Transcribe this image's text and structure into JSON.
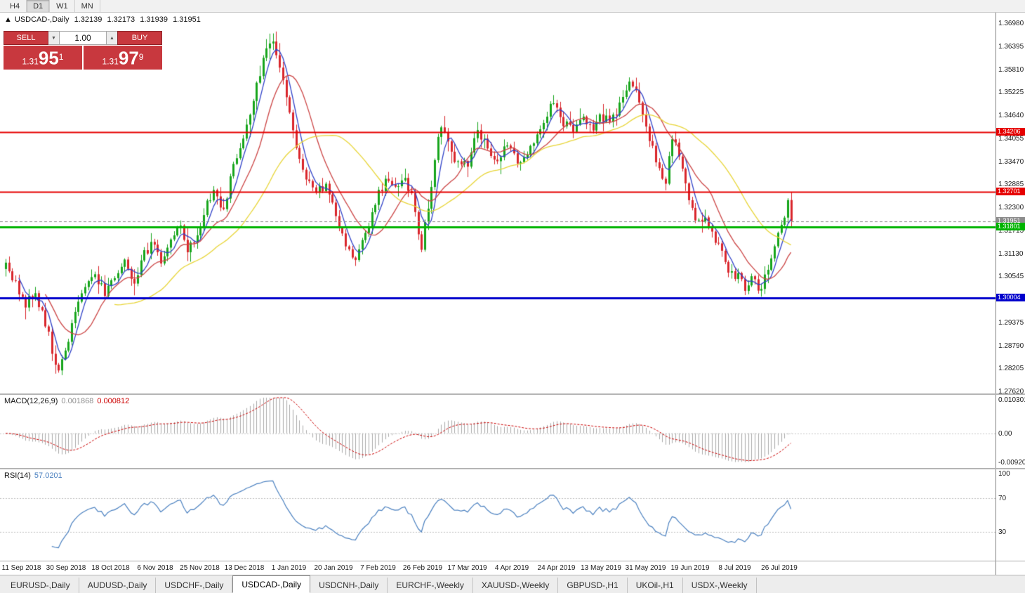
{
  "toolbar": {
    "periods": [
      {
        "label": "H4",
        "active": false
      },
      {
        "label": "D1",
        "active": true
      },
      {
        "label": "W1",
        "active": false
      },
      {
        "label": "MN",
        "active": false
      }
    ]
  },
  "chart": {
    "header": {
      "icon": "▲",
      "symbol": "USDCAD-,Daily",
      "open": "1.32139",
      "high": "1.32173",
      "low": "1.31939",
      "close": "1.31951"
    },
    "trade_panel": {
      "sell_label": "SELL",
      "buy_label": "BUY",
      "volume": "1.00",
      "vol_down_glyph": "▼",
      "vol_up_glyph": "▲",
      "panel_color": "#c8383e",
      "bid": {
        "prefix": "1.31",
        "big": "95",
        "sup": "1"
      },
      "ask": {
        "prefix": "1.31",
        "big": "97",
        "sup": "9"
      }
    },
    "bid_line": {
      "price": 1.31951,
      "label": "1.31951",
      "color": "#8c8c8c"
    },
    "levels": [
      {
        "price": 1.34206,
        "label": "1.34206",
        "color": "#e60000",
        "width": 2
      },
      {
        "price": 1.32701,
        "label": "1.32701",
        "color": "#e60000",
        "width": 2
      },
      {
        "price": 1.31801,
        "label": "1.31801",
        "color": "#00b400",
        "width": 3
      },
      {
        "price": 1.30004,
        "label": "1.30004",
        "color": "#0000cc",
        "width": 3
      }
    ]
  },
  "macd": {
    "name": "MACD(12,26,9)",
    "main_value": "0.001868",
    "signal_value": "0.000812",
    "axis": [
      "0.0103011",
      "0.00",
      "-0.0092011"
    ],
    "range": [
      0.0103011,
      -0.0092011
    ]
  },
  "rsi": {
    "name": "RSI(14)",
    "value": "57.0201",
    "axis": [
      {
        "label": "100",
        "value": 100
      },
      {
        "label": "70",
        "value": 70
      },
      {
        "label": "30",
        "value": 30
      }
    ]
  },
  "tabs": [
    {
      "label": "EURUSD-,Daily",
      "active": false
    },
    {
      "label": "AUDUSD-,Daily",
      "active": false
    },
    {
      "label": "USDCHF-,Daily",
      "active": false
    },
    {
      "label": "USDCAD-,Daily",
      "active": true
    },
    {
      "label": "USDCNH-,Daily",
      "active": false
    },
    {
      "label": "EURCHF-,Weekly",
      "active": false
    },
    {
      "label": "XAUUSD-,Weekly",
      "active": false
    },
    {
      "label": "GBPUSD-,H1",
      "active": false
    },
    {
      "label": "UKOil-,H1",
      "active": false
    },
    {
      "label": "USDX-,Weekly",
      "active": false
    }
  ],
  "chart_data": {
    "type": "candlestick",
    "symbol": "USDCAD",
    "timeframe": "Daily",
    "ohlc_display": {
      "open": 1.32139,
      "high": 1.32173,
      "low": 1.31939,
      "close": 1.31951
    },
    "candle_count": 239,
    "last_close": 1.31951,
    "price_axis": {
      "top": 1.3698,
      "step": 0.00585,
      "labels": [
        "1.36980",
        "1.36395",
        "1.35810",
        "1.35225",
        "1.34640",
        "1.34055",
        "1.33470",
        "1.32885",
        "1.32300",
        "1.31715",
        "1.31130",
        "1.30545",
        "1.29960",
        "1.29375",
        "1.28790",
        "1.28205",
        "1.27620"
      ]
    },
    "date_labels": [
      "11 Sep 2018",
      "30 Sep 2018",
      "18 Oct 2018",
      "6 Nov 2018",
      "25 Nov 2018",
      "13 Dec 2018",
      "1 Jan 2019",
      "20 Jan 2019",
      "7 Feb 2019",
      "26 Feb 2019",
      "17 Mar 2019",
      "4 Apr 2019",
      "24 Apr 2019",
      "13 May 2019",
      "31 May 2019",
      "19 Jun 2019",
      "8 Jul 2019",
      "26 Jul 2019"
    ],
    "price_anchors": [
      [
        0,
        1.3085
      ],
      [
        3,
        1.3035
      ],
      [
        6,
        1.2985
      ],
      [
        9,
        1.3005
      ],
      [
        12,
        1.294
      ],
      [
        14,
        1.2865
      ],
      [
        16,
        1.282
      ],
      [
        18,
        1.287
      ],
      [
        21,
        1.296
      ],
      [
        24,
        1.302
      ],
      [
        27,
        1.306
      ],
      [
        30,
        1.301
      ],
      [
        33,
        1.306
      ],
      [
        36,
        1.309
      ],
      [
        39,
        1.3045
      ],
      [
        42,
        1.311
      ],
      [
        45,
        1.314
      ],
      [
        47,
        1.3075
      ],
      [
        50,
        1.315
      ],
      [
        53,
        1.3175
      ],
      [
        55,
        1.3115
      ],
      [
        58,
        1.317
      ],
      [
        61,
        1.324
      ],
      [
        63,
        1.3265
      ],
      [
        66,
        1.323
      ],
      [
        69,
        1.333
      ],
      [
        72,
        1.3405
      ],
      [
        75,
        1.35
      ],
      [
        78,
        1.361
      ],
      [
        80,
        1.365
      ],
      [
        82,
        1.3628
      ],
      [
        85,
        1.3505
      ],
      [
        88,
        1.3385
      ],
      [
        91,
        1.33
      ],
      [
        94,
        1.327
      ],
      [
        97,
        1.329
      ],
      [
        100,
        1.3205
      ],
      [
        103,
        1.313
      ],
      [
        106,
        1.309
      ],
      [
        109,
        1.316
      ],
      [
        112,
        1.3245
      ],
      [
        115,
        1.33
      ],
      [
        118,
        1.327
      ],
      [
        121,
        1.331
      ],
      [
        123,
        1.3255
      ],
      [
        126,
        1.313
      ],
      [
        128,
        1.323
      ],
      [
        130,
        1.3355
      ],
      [
        132,
        1.344
      ],
      [
        134,
        1.3385
      ],
      [
        137,
        1.3335
      ],
      [
        140,
        1.334
      ],
      [
        143,
        1.342
      ],
      [
        146,
        1.3385
      ],
      [
        149,
        1.335
      ],
      [
        152,
        1.3395
      ],
      [
        155,
        1.3345
      ],
      [
        158,
        1.3365
      ],
      [
        161,
        1.3405
      ],
      [
        164,
        1.3465
      ],
      [
        166,
        1.35
      ],
      [
        169,
        1.3445
      ],
      [
        172,
        1.3425
      ],
      [
        175,
        1.3455
      ],
      [
        178,
        1.3435
      ],
      [
        180,
        1.3465
      ],
      [
        183,
        1.3445
      ],
      [
        186,
        1.3485
      ],
      [
        189,
        1.3555
      ],
      [
        191,
        1.352
      ],
      [
        194,
        1.343
      ],
      [
        197,
        1.335
      ],
      [
        200,
        1.3295
      ],
      [
        202,
        1.3405
      ],
      [
        204,
        1.3365
      ],
      [
        207,
        1.3255
      ],
      [
        209,
        1.3185
      ],
      [
        212,
        1.3205
      ],
      [
        215,
        1.315
      ],
      [
        218,
        1.3085
      ],
      [
        221,
        1.306
      ],
      [
        224,
        1.303
      ],
      [
        226,
        1.3045
      ],
      [
        229,
        1.302
      ],
      [
        231,
        1.308
      ],
      [
        233,
        1.313
      ],
      [
        235,
        1.3185
      ],
      [
        237,
        1.324
      ],
      [
        238,
        1.31951
      ]
    ],
    "moving_averages": [
      {
        "name": "fast-ma",
        "period": 5,
        "color": "#2f41c8"
      },
      {
        "name": "mid-ma",
        "period": 13,
        "color": "#cc4444"
      },
      {
        "name": "slow-ma",
        "period": 34,
        "color": "#e8d535"
      }
    ],
    "colors": {
      "up": "#16a51b",
      "down": "#d9262c",
      "macd_histogram": "#aaaaaa",
      "macd_signal": "#cc0000",
      "rsi_line": "#4a80c0",
      "bid_line": "#8c8c8c"
    }
  }
}
